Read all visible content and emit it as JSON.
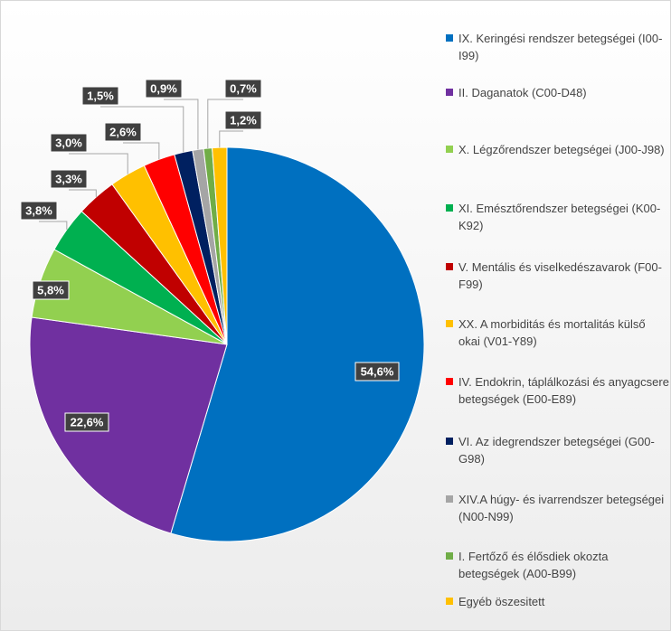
{
  "chart_data": {
    "type": "pie",
    "categories": [
      "IX. Keringési rendszer betegségei (I00-I99)",
      "II. Daganatok (C00-D48)",
      "X. Légzőrendszer betegségei (J00-J98)",
      "XI. Emésztőrendszer betegségei (K00-K92)",
      "V. Mentális és viselkedészavarok (F00-F99)",
      "XX. A morbiditás és mortalitás külső okai (V01-Y89)",
      "IV. Endokrin, táplálkozási és anyagcsere betegségek (E00-E89)",
      "VI. Az idegrendszer betegségei (G00-G98)",
      "XIV.A húgy- és ivarrendszer betegségei (N00-N99)",
      "I. Fertőző és élősdiek okozta betegségek (A00-B99)",
      "Egyéb öszesitett"
    ],
    "values": [
      54.6,
      22.6,
      5.8,
      3.8,
      3.3,
      3.0,
      2.6,
      1.5,
      0.9,
      0.7,
      1.2
    ],
    "value_labels": [
      "54,6%",
      "22,6%",
      "5,8%",
      "3,8%",
      "3,3%",
      "3,0%",
      "2,6%",
      "1,5%",
      "0,9%",
      "0,7%",
      "1,2%"
    ],
    "colors": [
      "#0070c0",
      "#7030a0",
      "#92d050",
      "#00b050",
      "#c00000",
      "#ffc000",
      "#ff0000",
      "#002060",
      "#a5a5a5",
      "#70ad47",
      "#ffc000"
    ]
  }
}
